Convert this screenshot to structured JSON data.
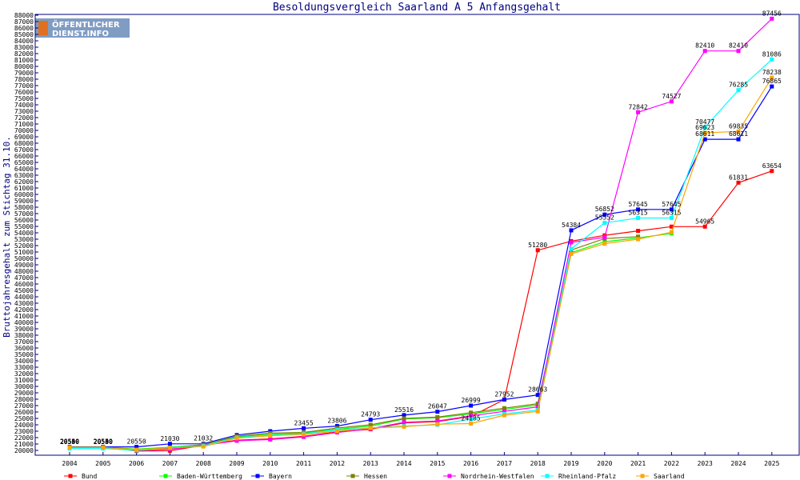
{
  "logo": {
    "line1": "ÖFFENTLICHER",
    "line2": "DIENST.INFO"
  },
  "chart_data": {
    "type": "line",
    "title": "Besoldungsvergleich Saarland A 5 Anfangsgehalt",
    "xlabel": "",
    "ylabel": "Bruttojahresgehalt zum Stichtag 31.10.",
    "x": [
      "2004",
      "2005",
      "2006",
      "2007",
      "2008",
      "2009",
      "2010",
      "2011",
      "2012",
      "2013",
      "2014",
      "2015",
      "2016",
      "2017",
      "2018",
      "2019",
      "2020",
      "2021",
      "2022",
      "2023",
      "2024",
      "2025"
    ],
    "ylim": [
      20000,
      88000
    ],
    "ytick_step": 1000,
    "grid": false,
    "legend": "bottom",
    "series": [
      {
        "name": "Bund",
        "color": "#ff0000",
        "values": [
          20540,
          20540,
          19900,
          19950,
          20800,
          21600,
          21800,
          22200,
          22900,
          23300,
          24300,
          24500,
          25300,
          27952,
          51280,
          52700,
          53600,
          54300,
          54965,
          54965,
          61831,
          63654
        ],
        "labels": [
          20540,
          20540,
          null,
          null,
          null,
          null,
          null,
          null,
          null,
          null,
          null,
          null,
          null,
          null,
          51280,
          null,
          null,
          null,
          null,
          54965,
          61831,
          63654
        ]
      },
      {
        "name": "Baden-Württemberg",
        "color": "#00ff00",
        "values": [
          20500,
          20500,
          20200,
          20500,
          20900,
          22100,
          22500,
          22700,
          23300,
          23800,
          24900,
          25100,
          25700,
          26400,
          27100,
          50900,
          52600,
          53200,
          53900,
          null,
          null,
          null
        ],
        "labels": [
          20500,
          20500,
          null,
          null,
          null,
          null,
          null,
          null,
          null,
          null,
          null,
          null,
          null,
          null,
          null,
          null,
          null,
          null,
          null,
          null,
          null,
          null
        ]
      },
      {
        "name": "Bayern",
        "color": "#0000ff",
        "values": [
          20550,
          20550,
          20550,
          21030,
          21032,
          22400,
          23000,
          23455,
          23806,
          24793,
          25516,
          26047,
          26999,
          27952,
          28663,
          54384,
          56852,
          57645,
          57645,
          68611,
          68611,
          76865
        ],
        "labels": [
          20550,
          20550,
          20550,
          21030,
          21032,
          null,
          null,
          23455,
          23806,
          24793,
          25516,
          26047,
          26999,
          27952,
          28663,
          54384,
          56852,
          57645,
          57645,
          68611,
          68611,
          76865
        ]
      },
      {
        "name": "Hessen",
        "color": "#808000",
        "values": [
          20530,
          20530,
          20100,
          20300,
          20900,
          22200,
          22700,
          22800,
          23500,
          24000,
          25000,
          25200,
          25900,
          26600,
          27300,
          51300,
          53100,
          53400,
          null,
          null,
          null,
          null
        ],
        "labels": [
          20530,
          20530,
          null,
          null,
          null,
          null,
          null,
          null,
          null,
          null,
          null,
          null,
          null,
          null,
          null,
          null,
          null,
          null,
          null,
          null,
          null,
          null
        ]
      },
      {
        "name": "Nordrhein-Westfalen",
        "color": "#ff00ff",
        "values": [
          20400,
          20400,
          20000,
          20200,
          20800,
          21500,
          21700,
          22100,
          22800,
          23400,
          24400,
          24600,
          25400,
          26100,
          26800,
          52500,
          53300,
          72842,
          74527,
          82410,
          82410,
          87456
        ],
        "labels": [
          null,
          null,
          null,
          null,
          null,
          null,
          null,
          null,
          null,
          null,
          null,
          null,
          null,
          null,
          null,
          null,
          null,
          72842,
          74527,
          82410,
          82410,
          87456
        ]
      },
      {
        "name": "Rheinland-Pfalz",
        "color": "#00ffff",
        "values": [
          20300,
          20300,
          20000,
          20400,
          20700,
          22000,
          22400,
          22600,
          23200,
          23500,
          23800,
          24000,
          24900,
          25700,
          26300,
          51500,
          55552,
          56315,
          56315,
          70477,
          76285,
          81086
        ],
        "labels": [
          null,
          null,
          null,
          null,
          null,
          null,
          null,
          null,
          null,
          null,
          null,
          null,
          null,
          null,
          null,
          null,
          55552,
          56315,
          56315,
          70477,
          76285,
          81086
        ]
      },
      {
        "name": "Saarland",
        "color": "#ffa500",
        "values": [
          20450,
          20450,
          20100,
          20400,
          20600,
          21900,
          22300,
          22500,
          23000,
          23500,
          23700,
          24100,
          24185,
          25500,
          26100,
          50700,
          52300,
          53000,
          54096,
          69623,
          69835,
          78238
        ],
        "labels": [
          null,
          null,
          null,
          null,
          null,
          null,
          null,
          null,
          null,
          null,
          null,
          null,
          24185,
          null,
          null,
          null,
          null,
          null,
          null,
          69623,
          69835,
          78238
        ]
      }
    ]
  }
}
